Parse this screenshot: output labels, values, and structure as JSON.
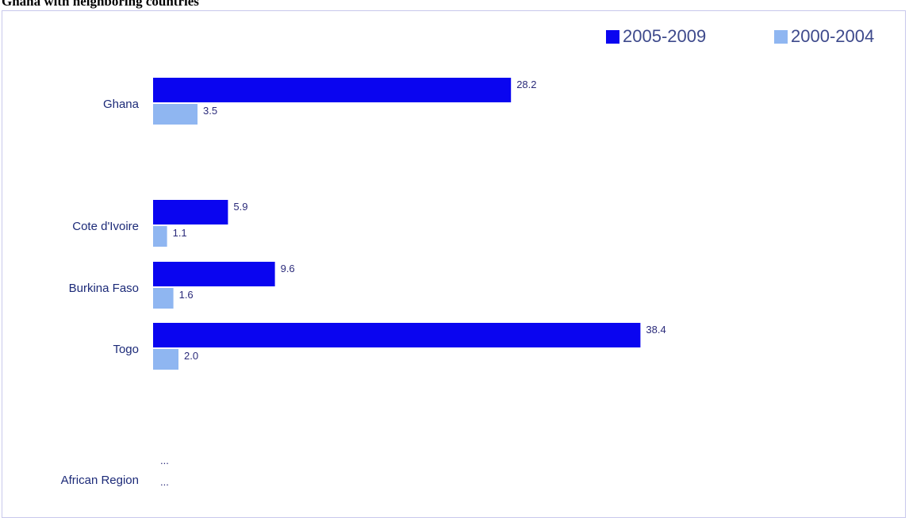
{
  "chart_data": {
    "type": "bar",
    "orientation": "horizontal",
    "title": "Ghana with neighboring countries",
    "categories": [
      "Ghana",
      "Cote d'Ivoire",
      "Burkina Faso",
      "Togo",
      "African Region"
    ],
    "series": [
      {
        "name": "2005-2009",
        "color": "#0a05f0",
        "values": [
          28.2,
          5.9,
          9.6,
          38.4,
          null
        ],
        "labels": [
          "28.2",
          "5.9",
          "9.6",
          "38.4",
          "..."
        ]
      },
      {
        "name": "2000-2004",
        "color": "#8fb6f1",
        "values": [
          3.5,
          1.1,
          1.6,
          2.0,
          null
        ],
        "labels": [
          "3.5",
          "1.1",
          "1.6",
          "2.0",
          "..."
        ]
      }
    ],
    "legend_position": "top-right",
    "grid": false
  }
}
